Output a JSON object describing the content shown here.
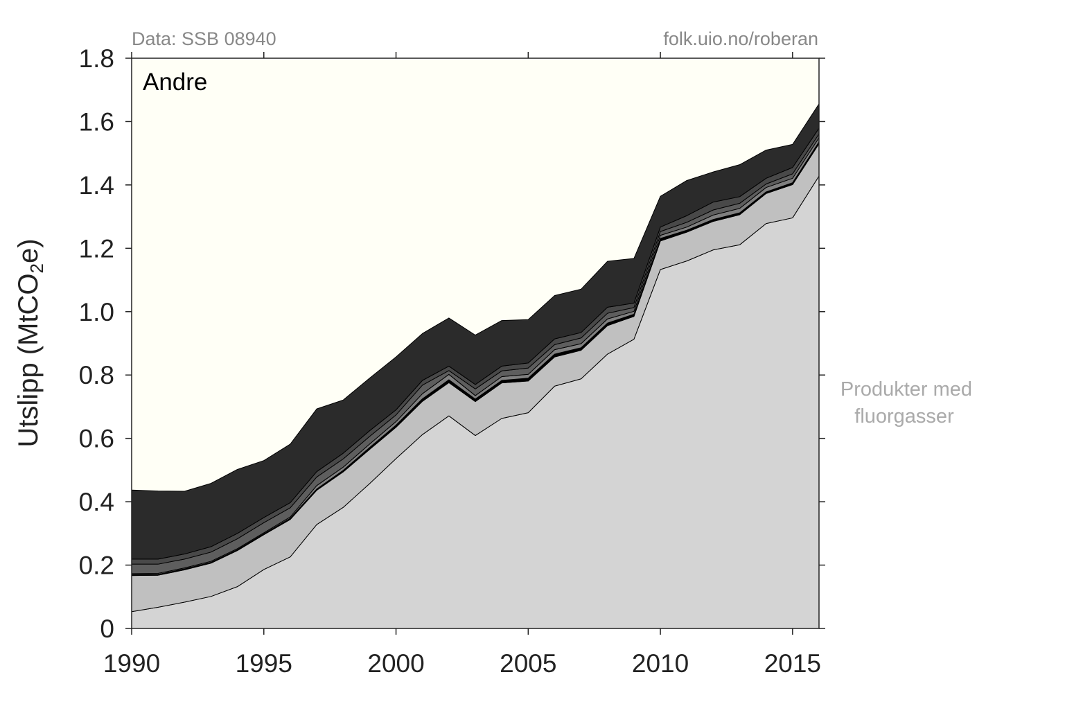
{
  "source_left": "Data: SSB 08940",
  "source_right": "folk.uio.no/roberan",
  "chart_data": {
    "type": "area",
    "stacked": true,
    "title": "Andre",
    "ylabel_main": "Utslipp (MtCO",
    "ylabel_sub": "2",
    "ylabel_end": "e)",
    "xlabel": "",
    "xlim": [
      1990,
      2016
    ],
    "ylim": [
      0,
      1.8
    ],
    "xticks": [
      1990,
      1995,
      2000,
      2005,
      2010,
      2015
    ],
    "yticks": [
      0,
      0.2,
      0.4,
      0.6,
      0.8,
      1.0,
      1.2,
      1.4,
      1.6,
      1.8
    ],
    "ytick_labels": [
      "0",
      "0.2",
      "0.4",
      "0.6",
      "0.8",
      "1.0",
      "1.2",
      "1.4",
      "1.6",
      "1.8"
    ],
    "background_color": "#fffff6",
    "grid": false,
    "annotation": [
      "Produkter med",
      "fluorgasser"
    ],
    "x": [
      1990,
      1991,
      1992,
      1993,
      1994,
      1995,
      1996,
      1997,
      1998,
      1999,
      2000,
      2001,
      2002,
      2003,
      2004,
      2005,
      2006,
      2007,
      2008,
      2009,
      2010,
      2011,
      2012,
      2013,
      2014,
      2015,
      2016
    ],
    "series": [
      {
        "color": "#d4d4d4",
        "values": [
          0.053,
          0.067,
          0.083,
          0.101,
          0.132,
          0.186,
          0.226,
          0.328,
          0.382,
          0.457,
          0.536,
          0.612,
          0.671,
          0.609,
          0.663,
          0.681,
          0.765,
          0.788,
          0.866,
          0.913,
          1.133,
          1.16,
          1.195,
          1.211,
          1.278,
          1.296,
          1.428
        ]
      },
      {
        "color": "#c0c0c0",
        "values": [
          0.114,
          0.101,
          0.102,
          0.105,
          0.114,
          0.11,
          0.118,
          0.108,
          0.112,
          0.108,
          0.099,
          0.105,
          0.105,
          0.107,
          0.112,
          0.1,
          0.092,
          0.09,
          0.09,
          0.072,
          0.09,
          0.091,
          0.09,
          0.095,
          0.095,
          0.105,
          0.102
        ]
      },
      {
        "color": "#000000",
        "values": [
          0.003,
          0.003,
          0.003,
          0.003,
          0.003,
          0.003,
          0.004,
          0.004,
          0.005,
          0.006,
          0.007,
          0.008,
          0.009,
          0.008,
          0.008,
          0.009,
          0.009,
          0.008,
          0.008,
          0.007,
          0.008,
          0.006,
          0.006,
          0.006,
          0.005,
          0.006,
          0.006
        ]
      },
      {
        "color": "#808080",
        "values": [
          0.003,
          0.003,
          0.003,
          0.003,
          0.003,
          0.003,
          0.004,
          0.011,
          0.01,
          0.011,
          0.011,
          0.016,
          0.017,
          0.011,
          0.012,
          0.012,
          0.014,
          0.013,
          0.013,
          0.009,
          0.01,
          0.01,
          0.014,
          0.014,
          0.014,
          0.014,
          0.013
        ]
      },
      {
        "color": "#5e5e5e",
        "values": [
          0.03,
          0.029,
          0.028,
          0.029,
          0.031,
          0.032,
          0.029,
          0.027,
          0.026,
          0.024,
          0.021,
          0.027,
          0.012,
          0.021,
          0.018,
          0.02,
          0.016,
          0.018,
          0.018,
          0.012,
          0.012,
          0.015,
          0.016,
          0.016,
          0.011,
          0.014,
          0.012
        ]
      },
      {
        "color": "#494949",
        "values": [
          0.016,
          0.016,
          0.016,
          0.017,
          0.017,
          0.016,
          0.016,
          0.017,
          0.018,
          0.018,
          0.016,
          0.015,
          0.014,
          0.014,
          0.015,
          0.016,
          0.018,
          0.017,
          0.019,
          0.014,
          0.014,
          0.021,
          0.025,
          0.021,
          0.018,
          0.02,
          0.018
        ]
      },
      {
        "color": "#2b2b2b",
        "values": [
          0.218,
          0.215,
          0.198,
          0.2,
          0.202,
          0.18,
          0.185,
          0.198,
          0.168,
          0.166,
          0.167,
          0.148,
          0.152,
          0.156,
          0.144,
          0.137,
          0.137,
          0.137,
          0.145,
          0.141,
          0.097,
          0.111,
          0.095,
          0.101,
          0.089,
          0.073,
          0.077
        ]
      }
    ]
  }
}
